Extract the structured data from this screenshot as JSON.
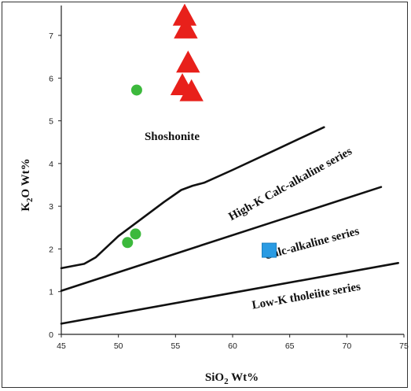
{
  "chart_data": {
    "type": "scatter",
    "xlabel": "SiO₂ Wt%",
    "ylabel": "K₂O Wt%",
    "xlim": [
      45,
      75
    ],
    "ylim": [
      0,
      7.7
    ],
    "xticks": [
      45,
      50,
      55,
      60,
      65,
      70,
      75
    ],
    "yticks": [
      0,
      1,
      2,
      3,
      4,
      5,
      6,
      7
    ],
    "grid": false,
    "boundaries": [
      {
        "points": [
          [
            45,
            1.55
          ],
          [
            47,
            1.65
          ],
          [
            48,
            1.8
          ],
          [
            50,
            2.3
          ],
          [
            52,
            2.7
          ],
          [
            54,
            3.1
          ],
          [
            55.5,
            3.38
          ],
          [
            56.5,
            3.48
          ],
          [
            57.5,
            3.55
          ],
          [
            60,
            3.85
          ],
          [
            64,
            4.35
          ],
          [
            68,
            4.85
          ]
        ]
      },
      {
        "points": [
          [
            45,
            1.02
          ],
          [
            73,
            3.45
          ]
        ]
      },
      {
        "points": [
          [
            45,
            0.25
          ],
          [
            74.5,
            1.67
          ]
        ]
      }
    ],
    "field_labels": [
      {
        "text": "Shoshonite",
        "x": 54.7,
        "y": 4.55,
        "rotate": 0
      },
      {
        "text": "High-K Calc-alkaline series",
        "x": 65.2,
        "y": 3.45,
        "rotate": -29
      },
      {
        "text": "Calc-alkaline series",
        "x": 67.0,
        "y": 2.05,
        "rotate": -15
      },
      {
        "text": "Low-K tholeiite series",
        "x": 66.5,
        "y": 0.82,
        "rotate": -10
      }
    ],
    "series": [
      {
        "marker": "triangle",
        "color": "#e8201b",
        "points": [
          [
            55.8,
            7.45
          ],
          [
            55.9,
            7.15
          ],
          [
            56.1,
            6.35
          ],
          [
            55.6,
            5.82
          ],
          [
            56.4,
            5.68
          ]
        ]
      },
      {
        "marker": "circle",
        "color": "#3cb93c",
        "points": [
          [
            51.6,
            5.72
          ],
          [
            51.5,
            2.35
          ],
          [
            50.8,
            2.15
          ]
        ]
      },
      {
        "marker": "square",
        "color": "#2a9be3",
        "points": [
          [
            63.2,
            1.97
          ]
        ]
      }
    ]
  }
}
